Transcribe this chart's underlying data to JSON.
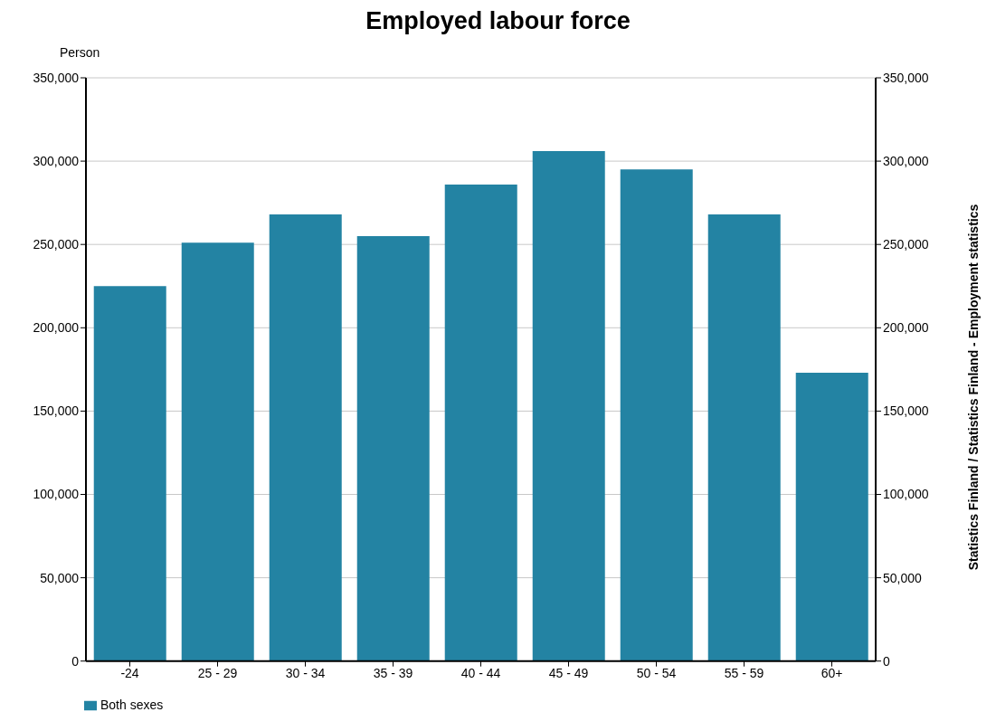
{
  "chart_data": {
    "type": "bar",
    "title": "Employed labour force",
    "ylabel": "Person",
    "y2label": "Statistics Finland / Statistics Finland - Employment statistics",
    "categories": [
      "-24",
      "25 - 29",
      "30 - 34",
      "35 - 39",
      "40 - 44",
      "45 - 49",
      "50 - 54",
      "55 - 59",
      "60+"
    ],
    "series": [
      {
        "name": "Both sexes",
        "color": "#2383a3",
        "values": [
          225000,
          251000,
          268000,
          255000,
          286000,
          306000,
          295000,
          268000,
          173000
        ]
      }
    ],
    "ylim": [
      0,
      350000
    ],
    "yticks": [
      {
        "value": 0,
        "label": "0"
      },
      {
        "value": 50000,
        "label": "50,000"
      },
      {
        "value": 100000,
        "label": "100,000"
      },
      {
        "value": 150000,
        "label": "150,000"
      },
      {
        "value": 200000,
        "label": "200,000"
      },
      {
        "value": 250000,
        "label": "250,000"
      },
      {
        "value": 300000,
        "label": "300,000"
      },
      {
        "value": 350000,
        "label": "350,000"
      }
    ],
    "y2lim": [
      0,
      350000
    ],
    "y2ticks": [
      {
        "value": 0,
        "label": "0"
      },
      {
        "value": 50000,
        "label": "50,000"
      },
      {
        "value": 100000,
        "label": "100,000"
      },
      {
        "value": 150000,
        "label": "150,000"
      },
      {
        "value": 200000,
        "label": "200,000"
      },
      {
        "value": 250000,
        "label": "250,000"
      },
      {
        "value": 300000,
        "label": "300,000"
      },
      {
        "value": 350000,
        "label": "350,000"
      }
    ],
    "grid": "y",
    "legend": "bottom left"
  }
}
